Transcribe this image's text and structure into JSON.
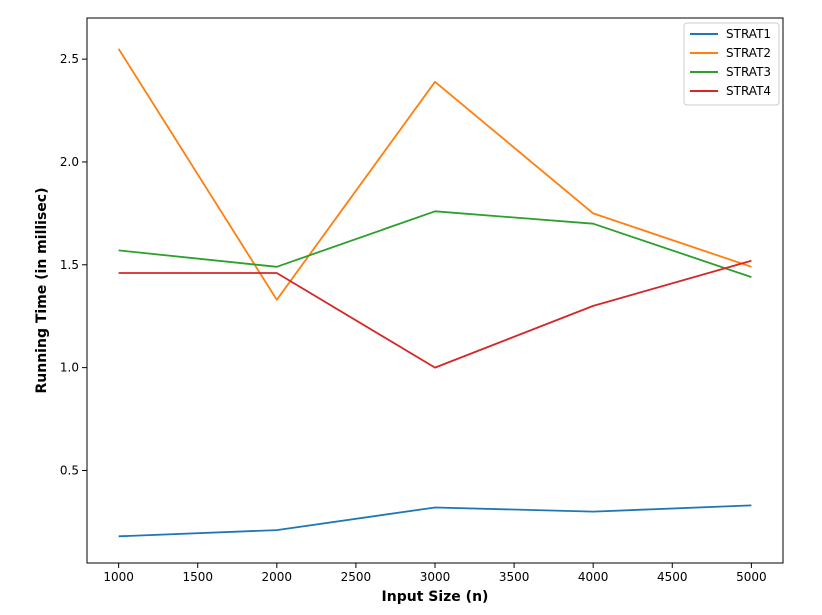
{
  "chart_data": {
    "type": "line",
    "xlabel": "Input Size (n)",
    "ylabel": "Running Time (in millisec)",
    "x": [
      1000,
      2000,
      3000,
      4000,
      5000
    ],
    "xlim": [
      800,
      5200
    ],
    "ylim": [
      0.05,
      2.7
    ],
    "xticks": [
      1000,
      1500,
      2000,
      2500,
      3000,
      3500,
      4000,
      4500,
      5000
    ],
    "yticks": [
      0.5,
      1.0,
      1.5,
      2.0,
      2.5
    ],
    "ytick_labels": [
      "0.5",
      "1.0",
      "1.5",
      "2.0",
      "2.5"
    ],
    "grid": false,
    "legend_position": "top-right",
    "series": [
      {
        "name": "STRAT1",
        "color": "#1f77b4",
        "values": [
          0.18,
          0.21,
          0.32,
          0.3,
          0.33
        ]
      },
      {
        "name": "STRAT2",
        "color": "#ff7f0e",
        "values": [
          2.55,
          1.33,
          2.39,
          1.75,
          1.49
        ]
      },
      {
        "name": "STRAT3",
        "color": "#2ca02c",
        "values": [
          1.57,
          1.49,
          1.76,
          1.7,
          1.44
        ]
      },
      {
        "name": "STRAT4",
        "color": "#d62728",
        "values": [
          1.46,
          1.46,
          1.0,
          1.3,
          1.52
        ]
      }
    ]
  }
}
